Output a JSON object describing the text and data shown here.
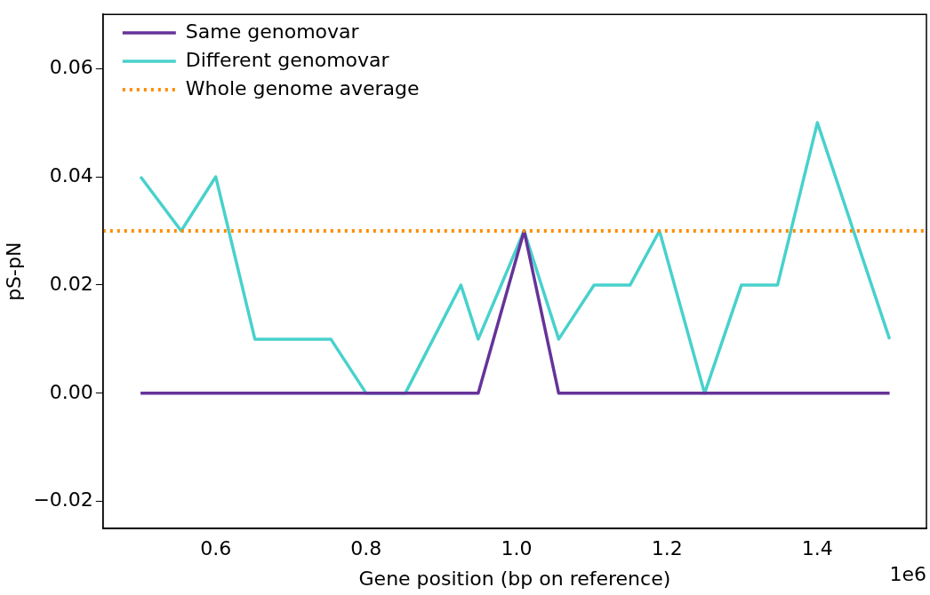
{
  "chart_data": {
    "type": "line",
    "xlabel": "Gene position (bp on reference)",
    "ylabel": "pS-pN",
    "x": [
      0.5,
      0.554,
      0.6,
      0.652,
      0.753,
      0.8,
      0.852,
      0.926,
      0.949,
      1.01,
      1.056,
      1.103,
      1.151,
      1.19,
      1.25,
      1.299,
      1.347,
      1.4,
      1.496
    ],
    "series": [
      {
        "name": "Same genomovar",
        "color": "#663399",
        "x": [
          0.5,
          0.949,
          1.01,
          1.056,
          1.496
        ],
        "values": [
          0,
          0,
          0.03,
          0,
          0
        ]
      },
      {
        "name": "Different genomovar",
        "color": "#48d1cc",
        "values": [
          0.04,
          0.03,
          0.04,
          0.01,
          0.01,
          0,
          0,
          0.02,
          0.01,
          0.03,
          0.01,
          0.02,
          0.02,
          0.03,
          0,
          0.02,
          0.02,
          0.05,
          0.01
        ]
      }
    ],
    "ref_lines": [
      {
        "axis": "y",
        "value": 0.03,
        "label": "Whole genome average",
        "color": "#ff8c00",
        "line_style": "dotted"
      }
    ],
    "xlim": [
      0.45,
      1.545
    ],
    "xticks": [
      {
        "value": 0.6,
        "label": "0.6"
      },
      {
        "value": 0.8,
        "label": "0.8"
      },
      {
        "value": 1.0,
        "label": "1.0"
      },
      {
        "value": 1.2,
        "label": "1.2"
      },
      {
        "value": 1.4,
        "label": "1.4"
      }
    ],
    "ylim": [
      -0.025,
      0.07
    ],
    "yticks": [
      {
        "value": -0.02,
        "label": "−0.02"
      },
      {
        "value": 0,
        "label": "0.00"
      },
      {
        "value": 0.02,
        "label": "0.02"
      },
      {
        "value": 0.04,
        "label": "0.04"
      },
      {
        "value": 0.06,
        "label": "0.06"
      }
    ],
    "annotations": [
      "1e6"
    ],
    "legend": "top left",
    "grid": false,
    "marker": "none",
    "line_style": "solid"
  }
}
